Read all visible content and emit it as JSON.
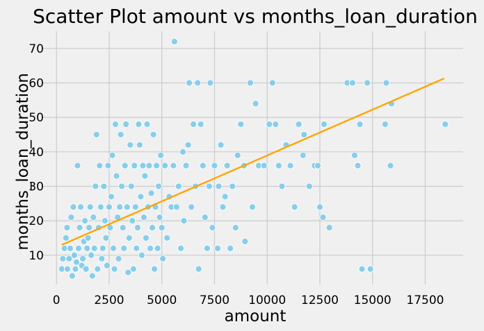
{
  "chart_data": {
    "type": "scatter",
    "title": "Scatter Plot amount vs months_loan_duration",
    "xlabel": "amount",
    "ylabel": "months_loan_duration",
    "xlim": [
      -700,
      19300
    ],
    "ylim": [
      1.5,
      75
    ],
    "xticks": [
      0,
      2500,
      5000,
      7500,
      10000,
      12500,
      15000,
      17500
    ],
    "xtick_labels": [
      "0",
      "2500",
      "5000",
      "7500",
      "10000",
      "12500",
      "15000",
      "17500"
    ],
    "yticks": [
      10,
      20,
      30,
      40,
      50,
      60,
      70
    ],
    "ytick_labels": [
      "10",
      "20",
      "30",
      "40",
      "50",
      "60",
      "70"
    ],
    "grid": true,
    "colors": {
      "background": "#f0f0f0",
      "grid": "#cbcbcb",
      "points": "#87ceeb",
      "point_edge": "#ffffff",
      "trend_line": "#ffa500",
      "text": "#000000"
    },
    "series": [
      {
        "kind": "points",
        "points": [
          [
            250,
            6
          ],
          [
            300,
            9
          ],
          [
            380,
            12
          ],
          [
            450,
            15
          ],
          [
            500,
            18
          ],
          [
            520,
            6
          ],
          [
            600,
            9
          ],
          [
            650,
            12
          ],
          [
            700,
            21
          ],
          [
            750,
            4
          ],
          [
            800,
            24
          ],
          [
            850,
            10
          ],
          [
            900,
            6
          ],
          [
            950,
            8
          ],
          [
            1000,
            36
          ],
          [
            1050,
            12
          ],
          [
            1100,
            18
          ],
          [
            1150,
            24
          ],
          [
            1200,
            7
          ],
          [
            1250,
            9
          ],
          [
            1300,
            14
          ],
          [
            1350,
            20
          ],
          [
            1400,
            6
          ],
          [
            1450,
            12
          ],
          [
            1500,
            15
          ],
          [
            1550,
            18
          ],
          [
            1600,
            24
          ],
          [
            1650,
            10
          ],
          [
            1700,
            4
          ],
          [
            1750,
            21
          ],
          [
            1800,
            12
          ],
          [
            1850,
            30
          ],
          [
            1900,
            45
          ],
          [
            1950,
            6
          ],
          [
            2000,
            18
          ],
          [
            2050,
            36
          ],
          [
            2100,
            24
          ],
          [
            2150,
            9
          ],
          [
            2200,
            12
          ],
          [
            2250,
            30
          ],
          [
            2300,
            20
          ],
          [
            2350,
            15
          ],
          [
            2400,
            7
          ],
          [
            2450,
            36
          ],
          [
            2500,
            24
          ],
          [
            2550,
            18
          ],
          [
            2600,
            27
          ],
          [
            2650,
            39
          ],
          [
            2700,
            12
          ],
          [
            2750,
            6
          ],
          [
            2800,
            48
          ],
          [
            2850,
            33
          ],
          [
            2900,
            21
          ],
          [
            2950,
            9
          ],
          [
            3000,
            24
          ],
          [
            3050,
            45
          ],
          [
            3100,
            30
          ],
          [
            3150,
            18
          ],
          [
            3200,
            12
          ],
          [
            3250,
            36
          ],
          [
            3300,
            48
          ],
          [
            3350,
            24
          ],
          [
            3400,
            5
          ],
          [
            3450,
            15
          ],
          [
            3500,
            42
          ],
          [
            3550,
            30
          ],
          [
            3600,
            20
          ],
          [
            3650,
            6
          ],
          [
            3700,
            36
          ],
          [
            3750,
            24
          ],
          [
            3800,
            12
          ],
          [
            3850,
            18
          ],
          [
            3900,
            48
          ],
          [
            3950,
            42
          ],
          [
            4000,
            27
          ],
          [
            4050,
            10
          ],
          [
            4100,
            36
          ],
          [
            4150,
            21
          ],
          [
            4200,
            33
          ],
          [
            4250,
            15
          ],
          [
            4300,
            48
          ],
          [
            4350,
            24
          ],
          [
            4400,
            36
          ],
          [
            4450,
            12
          ],
          [
            4500,
            28
          ],
          [
            4550,
            18
          ],
          [
            4600,
            45
          ],
          [
            4650,
            6
          ],
          [
            4700,
            24
          ],
          [
            4750,
            36
          ],
          [
            4800,
            12
          ],
          [
            4850,
            30
          ],
          [
            4900,
            21
          ],
          [
            4950,
            39
          ],
          [
            5000,
            18
          ],
          [
            5050,
            9
          ],
          [
            5150,
            36
          ],
          [
            5250,
            15
          ],
          [
            5350,
            27
          ],
          [
            5450,
            24
          ],
          [
            5550,
            36
          ],
          [
            5600,
            72
          ],
          [
            5700,
            24
          ],
          [
            5800,
            30
          ],
          [
            5900,
            12
          ],
          [
            6000,
            40
          ],
          [
            6050,
            20
          ],
          [
            6150,
            36
          ],
          [
            6250,
            42
          ],
          [
            6300,
            60
          ],
          [
            6400,
            24
          ],
          [
            6500,
            48
          ],
          [
            6600,
            30
          ],
          [
            6700,
            60
          ],
          [
            6750,
            6
          ],
          [
            6850,
            48
          ],
          [
            6950,
            36
          ],
          [
            7050,
            21
          ],
          [
            7150,
            12
          ],
          [
            7250,
            30
          ],
          [
            7300,
            60
          ],
          [
            7400,
            18
          ],
          [
            7500,
            36
          ],
          [
            7650,
            12
          ],
          [
            7700,
            30
          ],
          [
            7800,
            42
          ],
          [
            7900,
            24
          ],
          [
            8000,
            27
          ],
          [
            8100,
            36
          ],
          [
            8250,
            12
          ],
          [
            8350,
            30
          ],
          [
            8500,
            18
          ],
          [
            8600,
            39
          ],
          [
            8750,
            48
          ],
          [
            8900,
            36
          ],
          [
            8950,
            14
          ],
          [
            9200,
            60
          ],
          [
            9300,
            24
          ],
          [
            9450,
            54
          ],
          [
            9600,
            36
          ],
          [
            9850,
            36
          ],
          [
            10100,
            48
          ],
          [
            10250,
            60
          ],
          [
            10400,
            48
          ],
          [
            10550,
            36
          ],
          [
            10700,
            30
          ],
          [
            10900,
            42
          ],
          [
            11100,
            36
          ],
          [
            11300,
            24
          ],
          [
            11500,
            48
          ],
          [
            11700,
            39
          ],
          [
            11750,
            45
          ],
          [
            12000,
            30
          ],
          [
            12250,
            36
          ],
          [
            12400,
            36
          ],
          [
            12500,
            24
          ],
          [
            12650,
            21
          ],
          [
            12700,
            48
          ],
          [
            12950,
            18
          ],
          [
            13800,
            60
          ],
          [
            14050,
            60
          ],
          [
            14150,
            39
          ],
          [
            14300,
            36
          ],
          [
            14400,
            48
          ],
          [
            14500,
            6
          ],
          [
            14750,
            60
          ],
          [
            14900,
            6
          ],
          [
            15600,
            48
          ],
          [
            15650,
            60
          ],
          [
            15900,
            54
          ],
          [
            15850,
            36
          ],
          [
            18450,
            48
          ]
        ]
      }
    ],
    "trend_line": {
      "start": [
        250,
        13
      ],
      "end": [
        18400,
        61.3
      ]
    }
  }
}
